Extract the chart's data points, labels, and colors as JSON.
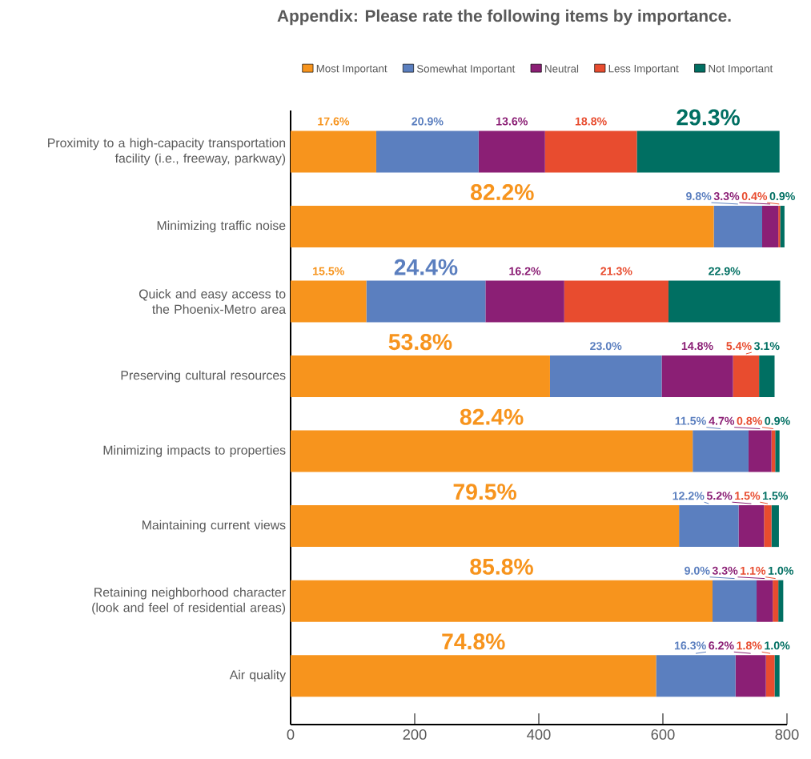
{
  "chart_data": {
    "type": "bar",
    "orientation": "horizontal",
    "stacked": true,
    "title": "Appendix: Please rate the following items by importance.",
    "categories": [
      "Proximity to a high-capacity transportation facility (i.e., freeway, parkway)",
      "Minimizing traffic noise",
      "Quick and easy access to the Phoenix-Metro area",
      "Preserving cultural resources",
      "Minimizing impacts to properties",
      "Maintaining current views",
      "Retaining neighborhood character (look and feel of residential areas)",
      "Air quality"
    ],
    "series": [
      {
        "name": "Most Important",
        "color": "#f7941d",
        "values": [
          138,
          682,
          122,
          418,
          648,
          626,
          680,
          589
        ]
      },
      {
        "name": "Somewhat Important",
        "color": "#5b7fbf",
        "values": [
          165,
          78,
          192,
          180,
          90,
          96,
          71,
          128
        ]
      },
      {
        "name": "Neutral",
        "color": "#8b1f75",
        "values": [
          107,
          26,
          127,
          115,
          37,
          41,
          26,
          49
        ]
      },
      {
        "name": "Less Important",
        "color": "#e84c2f",
        "values": [
          148,
          3,
          168,
          42,
          6,
          12,
          9,
          14
        ]
      },
      {
        "name": "Not Important",
        "color": "#006f62",
        "values": [
          230,
          7,
          180,
          25,
          7,
          12,
          8,
          8
        ]
      }
    ],
    "annotations": [
      "17.6%",
      "20.9%",
      "13.6%",
      "18.8%",
      "29.3%",
      "82.2%",
      "9.8%",
      "3.3%",
      "0.4%",
      "0.9%",
      "15.5%",
      "24.4%",
      "16.2%",
      "21.3%",
      "22.9%",
      "53.8%",
      "23.0%",
      "14.8%",
      "5.4%",
      "3.1%",
      "82.4%",
      "11.5%",
      "4.7%",
      "0.8%",
      "0.9%",
      "79.5%",
      "12.2%",
      "5.2%",
      "1.5%",
      "1.5%",
      "85.8%",
      "9.0%",
      "3.3%",
      "1.1%",
      "1.0%",
      "74.8%",
      "16.3%",
      "6.2%",
      "1.8%",
      "1.0%"
    ],
    "xlim": [
      0,
      800
    ],
    "xticks": [
      0,
      200,
      400,
      600,
      800
    ],
    "legend": "top"
  }
}
